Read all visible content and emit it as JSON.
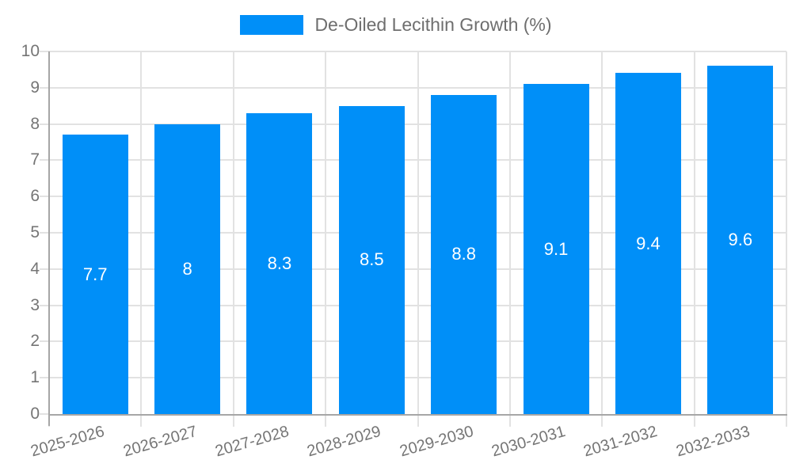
{
  "legend": {
    "label": "De-Oiled Lecithin Growth (%)"
  },
  "colors": {
    "bar": "#008FF8",
    "axis_label": "#757575",
    "legend_text": "#6e6e6e",
    "grid": "#e2e2e2",
    "axis_line": "#a6a6a6",
    "value_label": "#ffffff"
  },
  "chart_data": {
    "type": "bar",
    "title": "De-Oiled Lecithin Growth (%)",
    "categories": [
      "2025-2026",
      "2026-2027",
      "2027-2028",
      "2028-2029",
      "2029-2030",
      "2030-2031",
      "2031-2032",
      "2032-2033"
    ],
    "series": [
      {
        "name": "De-Oiled Lecithin Growth (%)",
        "values": [
          7.7,
          8,
          8.3,
          8.5,
          8.8,
          9.1,
          9.4,
          9.6
        ]
      }
    ],
    "value_labels": [
      "7.7",
      "8",
      "8.3",
      "8.5",
      "8.8",
      "9.1",
      "9.4",
      "9.6"
    ],
    "xlabel": "",
    "ylabel": "",
    "ylim": [
      0,
      10
    ],
    "y_ticks": [
      0,
      1,
      2,
      3,
      4,
      5,
      6,
      7,
      8,
      9,
      10
    ],
    "grid": true,
    "legend_position": "top",
    "bar_label_position": "inside-center"
  }
}
